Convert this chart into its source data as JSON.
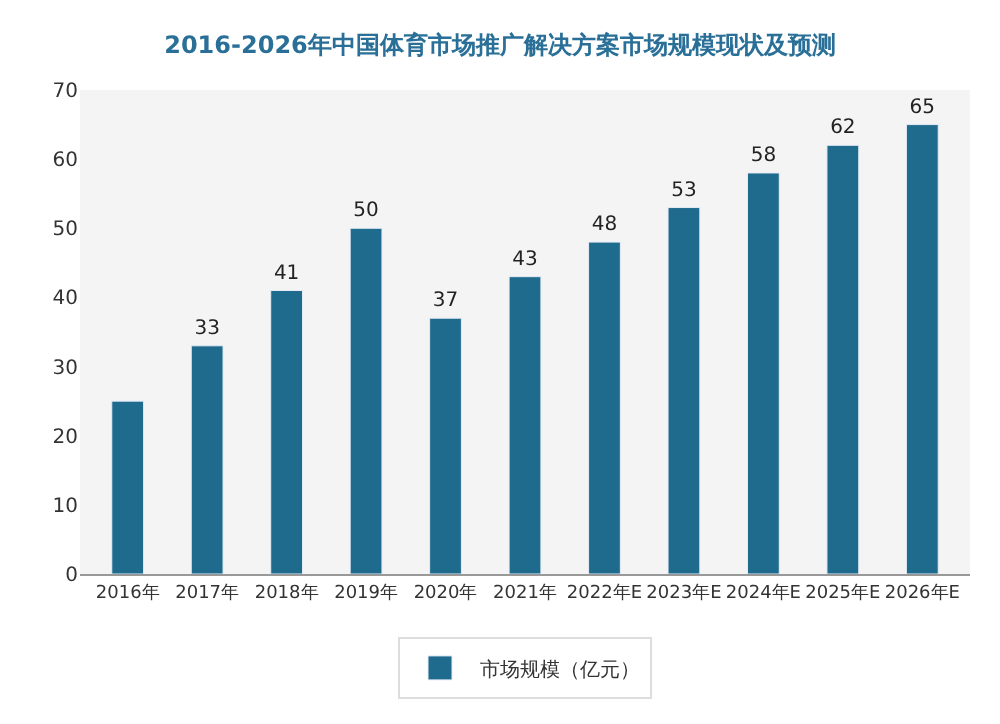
{
  "chart_data": {
    "type": "bar",
    "title": "2016-2026年中国体育市场推广解决方案市场规模现状及预测",
    "categories": [
      "2016年",
      "2017年",
      "2018年",
      "2019年",
      "2020年",
      "2021年",
      "2022年E",
      "2023年E",
      "2024年E",
      "2025年E",
      "2026年E"
    ],
    "series": [
      {
        "name": "市场规模（亿元）",
        "color": "#1f6b8e",
        "values": [
          25,
          33,
          41,
          50,
          37,
          43,
          48,
          53,
          58,
          62,
          65
        ],
        "value_labels": [
          null,
          "33",
          "41",
          "50",
          "37",
          "43",
          "48",
          "53",
          "58",
          "62",
          "65"
        ]
      }
    ],
    "ylim": [
      0,
      70
    ],
    "yticks": [
      0,
      10,
      20,
      30,
      40,
      50,
      60,
      70
    ],
    "grid": false,
    "legend": "bottom"
  }
}
